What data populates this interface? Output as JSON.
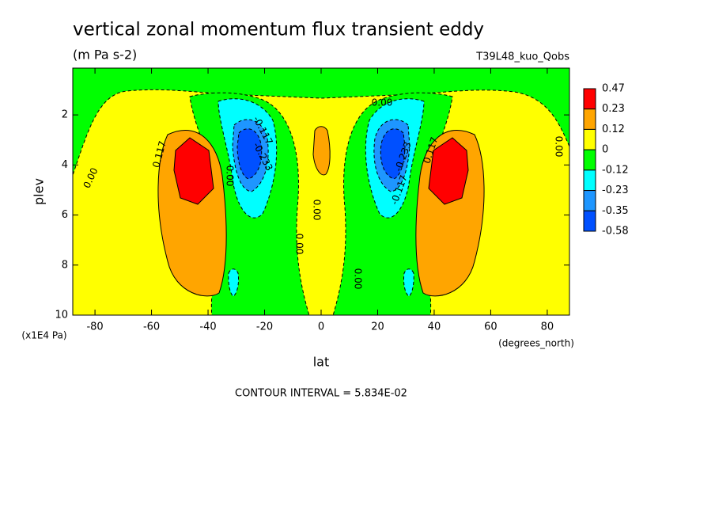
{
  "chart_data": {
    "type": "contour",
    "title": "vertical zonal momentum flux transient eddy",
    "subtitle": "(m Pa s-2)",
    "dataset": "T39L48_kuo_Qobs",
    "x_label": "lat",
    "x_units": "(degrees_north)",
    "y_label": "plev",
    "y_units": "(x1E4 Pa)",
    "xlim": [
      -87.86,
      87.86
    ],
    "xticks": [
      -80,
      -60,
      -40,
      -20,
      0,
      20,
      40,
      60,
      80
    ],
    "ylim": [
      10,
      0.13
    ],
    "yticks": [
      2,
      4,
      6,
      8,
      10
    ],
    "levels": [
      0.47,
      0.23,
      0.12,
      0,
      -0.12,
      -0.23,
      -0.35,
      -0.58
    ],
    "band_colors": [
      "#ff0000",
      "#ffa500",
      "#ffff00",
      "#00ff00",
      "#00ffff",
      "#1e96ff",
      "#0050ff"
    ],
    "contour_labels": [
      "0.00",
      "0.117",
      "-0.117",
      "-0.233",
      "0.00",
      "0.00",
      "0.00",
      "0.00",
      "0.00",
      "-0.233",
      "-0.117",
      "0.117",
      "0.00"
    ],
    "footnote": "CONTOUR INTERVAL = 5.834E-02"
  }
}
